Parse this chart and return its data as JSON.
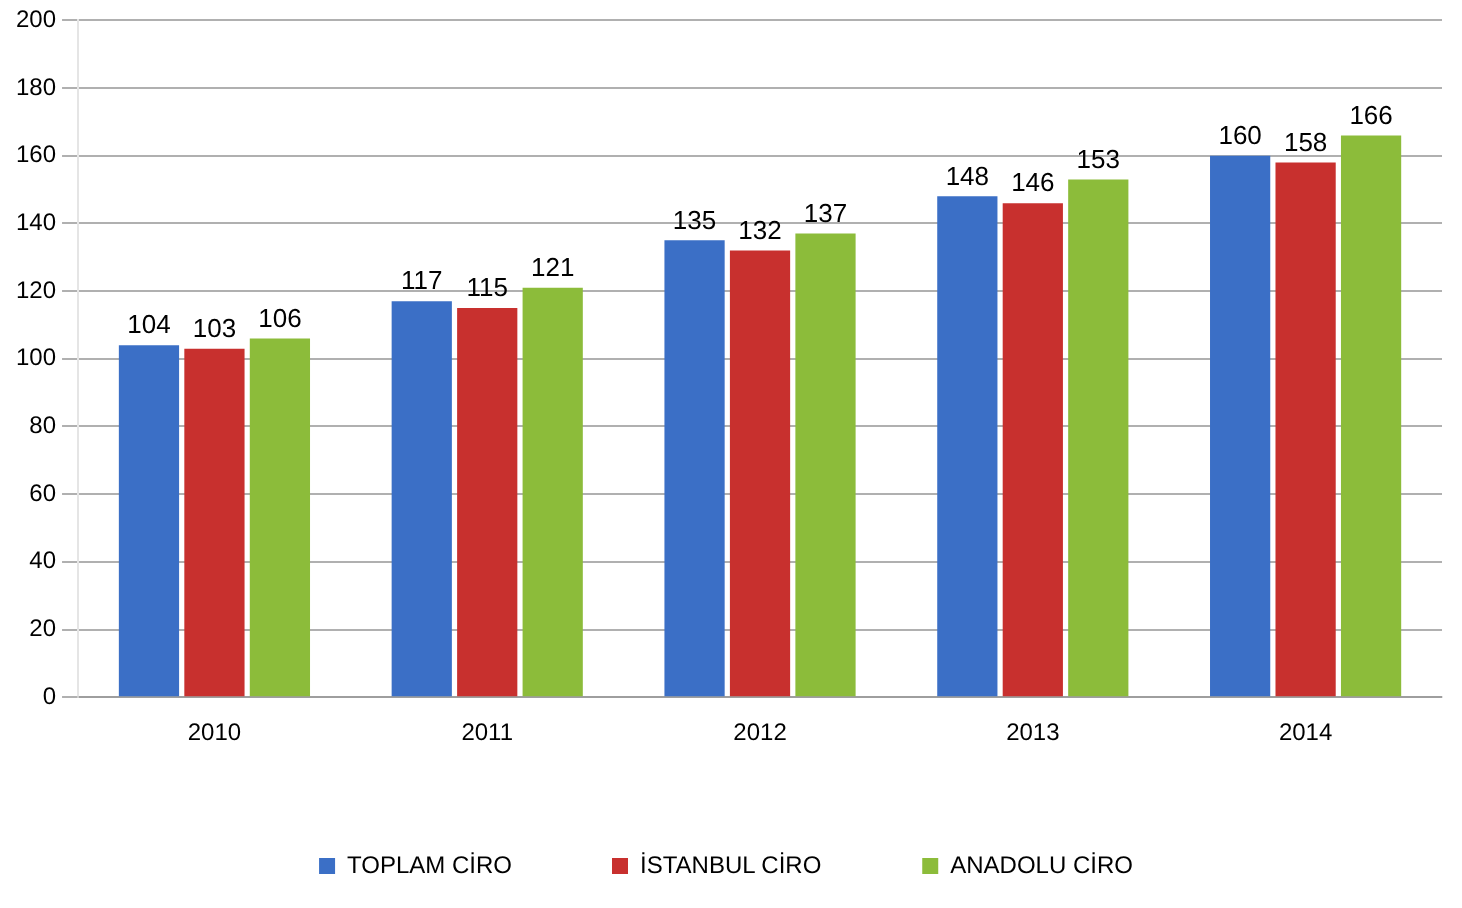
{
  "chart_data": {
    "type": "bar",
    "categories": [
      "2010",
      "2011",
      "2012",
      "2013",
      "2014"
    ],
    "series": [
      {
        "name": "TOPLAM CİRO",
        "color": "#3b6fc6",
        "values": [
          104,
          117,
          135,
          148,
          160
        ]
      },
      {
        "name": "İSTANBUL CİRO",
        "color": "#c8302e",
        "values": [
          103,
          115,
          132,
          146,
          158
        ]
      },
      {
        "name": "ANADOLU CİRO",
        "color": "#8cbc3a",
        "values": [
          106,
          121,
          137,
          153,
          166
        ]
      }
    ],
    "ylim": [
      0,
      200
    ],
    "yticks": [
      0,
      20,
      40,
      60,
      80,
      100,
      120,
      140,
      160,
      180,
      200
    ],
    "grid": "y",
    "legend": "bottom",
    "data_labels": true
  }
}
